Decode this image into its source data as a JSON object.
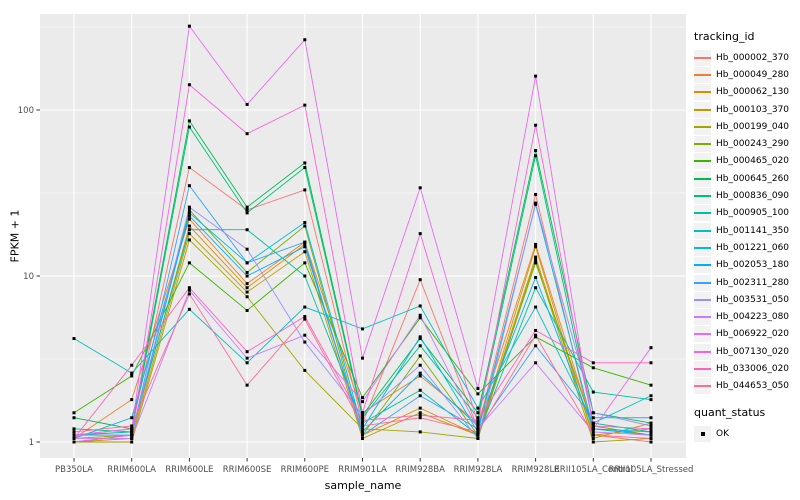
{
  "figure": {
    "background": "#FFFFFF",
    "panel_background": "#EBEBEB",
    "grid_color": "#FFFFFF",
    "tick_color": "#333333",
    "axis_text_color": "#4D4D4D",
    "point_color": "#000000"
  },
  "axes": {
    "x_title": "sample_name",
    "y_title": "FPKM + 1",
    "y_tick_labels": [
      "1",
      "10",
      "100"
    ],
    "y_ticks": [
      1,
      10,
      100
    ],
    "y_minor": [
      3.162,
      31.62,
      316.2
    ]
  },
  "legend": {
    "tracking_title": "tracking_id",
    "quant_title": "quant_status",
    "quant_items": [
      {
        "label": "OK",
        "color": "#000000"
      }
    ]
  },
  "chart_data": {
    "type": "line",
    "title": "",
    "xlabel": "sample_name",
    "ylabel": "FPKM + 1",
    "y_scale": "log10",
    "ylim": [
      0.8,
      380
    ],
    "grid": true,
    "legend_position": "right",
    "point_shape": "filled-square",
    "point_color": "#000000",
    "x_categories": [
      "PB350LA",
      "RRIM600LA",
      "RRIM600LE",
      "RRIM600SE",
      "RRIM600PE",
      "RRIM901LA",
      "RRIM928BA",
      "RRIM928LA",
      "RRIM928LE",
      "RRII105LA_Control",
      "RRII105LA_Stressed"
    ],
    "series": [
      {
        "name": "Hb_000002_370",
        "color": "#F8766D",
        "values": [
          1.1,
          1.2,
          45,
          25,
          33,
          1.3,
          9.5,
          1.2,
          31,
          1.1,
          1.0
        ]
      },
      {
        "name": "Hb_000049_280",
        "color": "#EA8331",
        "values": [
          1.05,
          1.8,
          22,
          9.0,
          16,
          1.5,
          2.5,
          1.3,
          15.5,
          1.2,
          1.1
        ]
      },
      {
        "name": "Hb_000062_130",
        "color": "#D89000",
        "values": [
          1.0,
          1.1,
          20,
          8.5,
          15.5,
          1.1,
          1.6,
          1.1,
          15,
          1.05,
          1.3
        ]
      },
      {
        "name": "Hb_000103_370",
        "color": "#C09B00",
        "values": [
          1.0,
          1.05,
          18,
          8.0,
          14,
          1.05,
          1.5,
          1.1,
          13,
          1.1,
          1.2
        ]
      },
      {
        "name": "Hb_000199_040",
        "color": "#A3A500",
        "values": [
          1.0,
          1.0,
          16.5,
          7.5,
          2.7,
          1.2,
          1.15,
          1.05,
          12.5,
          1.0,
          1.05
        ]
      },
      {
        "name": "Hb_000243_290",
        "color": "#7CAE00",
        "values": [
          1.05,
          1.1,
          25,
          10.5,
          20,
          1.1,
          3.3,
          1.1,
          12,
          1.25,
          1.1
        ]
      },
      {
        "name": "Hb_000465_020",
        "color": "#39B600",
        "values": [
          1.5,
          2.5,
          12,
          6.2,
          12,
          1.85,
          5.6,
          1.95,
          4.3,
          2.8,
          2.2
        ]
      },
      {
        "name": "Hb_000645_260",
        "color": "#00BB4E",
        "values": [
          1.4,
          1.2,
          86,
          26,
          48,
          1.45,
          4.2,
          1.5,
          57,
          1.5,
          1.3
        ]
      },
      {
        "name": "Hb_000836_090",
        "color": "#00BF7D",
        "values": [
          1.2,
          1.15,
          79,
          24,
          45,
          1.4,
          3.8,
          1.4,
          53,
          1.3,
          1.15
        ]
      },
      {
        "name": "Hb_000905_100",
        "color": "#00C1A3",
        "values": [
          1.1,
          1.15,
          19,
          19,
          10,
          1.3,
          2.05,
          1.1,
          8.5,
          2.0,
          1.8
        ]
      },
      {
        "name": "Hb_001141_350",
        "color": "#00BFC4",
        "values": [
          4.2,
          2.6,
          6.3,
          3.0,
          6.5,
          4.8,
          6.6,
          1.6,
          6.5,
          1.3,
          1.9
        ]
      },
      {
        "name": "Hb_001221_060",
        "color": "#00BAE0",
        "values": [
          1.1,
          1.1,
          24,
          12,
          21,
          1.2,
          4.3,
          1.15,
          27,
          1.2,
          1.1
        ]
      },
      {
        "name": "Hb_002053_180",
        "color": "#00B0F6",
        "values": [
          1.05,
          1.4,
          23,
          10,
          15,
          1.15,
          2.6,
          1.25,
          9.8,
          1.2,
          1.15
        ]
      },
      {
        "name": "Hb_002311_280",
        "color": "#35A2FF",
        "values": [
          1.0,
          1.1,
          35,
          12,
          16,
          1.1,
          1.9,
          1.2,
          3.8,
          1.4,
          1.4
        ]
      },
      {
        "name": "Hb_003531_050",
        "color": "#9590FF",
        "values": [
          1.1,
          1.1,
          26,
          14.5,
          4.0,
          1.45,
          2.9,
          1.05,
          27.5,
          1.5,
          1.25
        ]
      },
      {
        "name": "Hb_004223_080",
        "color": "#C77CFF",
        "values": [
          1.05,
          1.05,
          8.2,
          3.2,
          4.4,
          1.75,
          5.8,
          1.2,
          3.0,
          1.15,
          1.1
        ]
      },
      {
        "name": "Hb_006922_020",
        "color": "#E76BF3",
        "values": [
          1.1,
          1.2,
          320,
          108,
          265,
          3.2,
          34,
          2.1,
          160,
          1.2,
          3.7
        ]
      },
      {
        "name": "Hb_007130_020",
        "color": "#FA62DB",
        "values": [
          1.0,
          1.1,
          142,
          72,
          107,
          1.5,
          18,
          1.3,
          81,
          1.25,
          1.2
        ]
      },
      {
        "name": "Hb_033006_020",
        "color": "#FF62BC",
        "values": [
          1.05,
          2.9,
          8.5,
          3.5,
          5.7,
          1.35,
          1.45,
          1.35,
          4.7,
          3.0,
          3.0
        ]
      },
      {
        "name": "Hb_044653_050",
        "color": "#FF6A98",
        "values": [
          1.15,
          1.25,
          7.8,
          2.2,
          5.5,
          1.25,
          1.4,
          1.15,
          4.4,
          1.1,
          1.05
        ]
      }
    ]
  }
}
